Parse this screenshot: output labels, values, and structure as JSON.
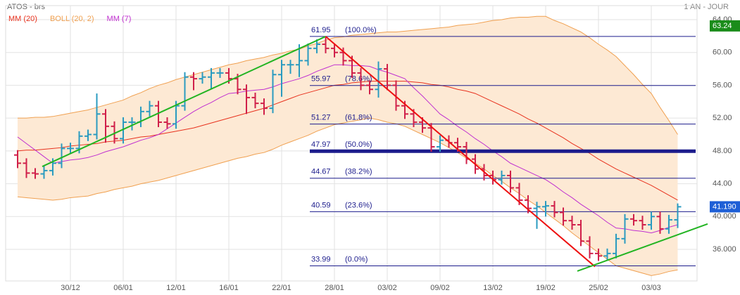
{
  "header": {
    "symbol": "ATOS - brs",
    "period": "1 AN - JOUR"
  },
  "chart_data": {
    "type": "ohlc",
    "categories": [
      null,
      null,
      null,
      null,
      null,
      null,
      "30/12",
      null,
      null,
      null,
      null,
      null,
      "06/01",
      null,
      null,
      null,
      null,
      null,
      "12/01",
      null,
      null,
      null,
      null,
      null,
      "16/01",
      null,
      null,
      null,
      null,
      null,
      "22/01",
      null,
      null,
      null,
      null,
      null,
      "28/01",
      null,
      null,
      null,
      null,
      null,
      "03/02",
      null,
      null,
      null,
      null,
      null,
      "09/02",
      null,
      null,
      null,
      null,
      null,
      "13/02",
      null,
      null,
      null,
      null,
      null,
      "19/02",
      null,
      null,
      null,
      null,
      null,
      "25/02",
      null,
      null,
      null,
      null,
      null,
      "03/03",
      null,
      null,
      null
    ],
    "open": [
      47.5,
      46.5,
      45.3,
      45.2,
      45.6,
      46.5,
      48.3,
      48.3,
      49.8,
      50.0,
      52.5,
      51.0,
      49.5,
      51.5,
      51.5,
      52.8,
      53.5,
      51.5,
      51.3,
      53.5,
      57.0,
      56.8,
      57.0,
      57.5,
      57.5,
      56.8,
      55.5,
      54.5,
      53.8,
      53.2,
      57.3,
      58.5,
      58.5,
      59.0,
      60.5,
      61.0,
      60.5,
      60.0,
      59.0,
      57.5,
      56.0,
      55.5,
      58.0,
      56.0,
      53.5,
      52.5,
      51.5,
      50.8,
      48.5,
      49.3,
      49.0,
      48.5,
      47.0,
      45.8,
      45.0,
      44.5,
      45.0,
      43.5,
      42.0,
      41.0,
      41.2,
      41.3,
      40.5,
      39.5,
      39.0,
      37.0,
      35.5,
      35.2,
      35.5,
      37.3,
      39.7,
      39.5,
      39.0,
      40.0,
      38.5,
      39.6
    ],
    "high": [
      48.1,
      47.1,
      45.9,
      46.2,
      47.1,
      48.9,
      49.0,
      50.4,
      50.6,
      55.0,
      53.1,
      51.6,
      52.1,
      52.1,
      53.4,
      54.1,
      54.1,
      52.1,
      54.1,
      57.6,
      57.6,
      57.6,
      58.1,
      58.1,
      58.1,
      57.4,
      56.1,
      55.1,
      54.4,
      57.9,
      59.1,
      59.1,
      61.0,
      61.1,
      61.6,
      61.95,
      61.1,
      60.6,
      59.6,
      58.1,
      56.6,
      58.9,
      58.6,
      56.6,
      54.1,
      53.1,
      52.1,
      51.4,
      49.9,
      49.9,
      49.6,
      49.1,
      47.6,
      46.4,
      45.6,
      45.6,
      45.6,
      44.1,
      42.6,
      41.8,
      41.9,
      41.9,
      41.1,
      40.1,
      39.6,
      37.6,
      36.1,
      36.1,
      37.9,
      40.3,
      40.3,
      40.1,
      40.6,
      40.6,
      40.2,
      41.6
    ],
    "low": [
      45.9,
      44.7,
      44.6,
      44.6,
      45.0,
      45.9,
      47.7,
      47.7,
      49.2,
      49.4,
      49.0,
      48.9,
      48.9,
      50.5,
      50.9,
      52.2,
      50.9,
      50.7,
      50.7,
      52.9,
      55.4,
      56.2,
      55.5,
      56.9,
      56.2,
      54.9,
      52.5,
      53.2,
      52.4,
      52.6,
      54.6,
      57.4,
      57.0,
      58.4,
      59.9,
      59.9,
      59.4,
      58.4,
      56.9,
      55.4,
      54.9,
      54.5,
      55.4,
      52.9,
      51.9,
      50.9,
      50.2,
      47.9,
      47.9,
      48.4,
      47.9,
      46.4,
      45.2,
      44.4,
      43.9,
      43.9,
      42.9,
      41.4,
      40.4,
      38.5,
      40.0,
      39.9,
      38.9,
      38.4,
      36.4,
      34.9,
      34.6,
      34.6,
      34.9,
      36.7,
      38.9,
      38.4,
      38.4,
      37.9,
      37.9,
      38.6
    ],
    "close": [
      46.5,
      45.3,
      45.2,
      45.6,
      46.5,
      48.3,
      48.3,
      49.8,
      50.0,
      52.5,
      51.0,
      49.5,
      51.5,
      51.5,
      52.8,
      53.5,
      51.5,
      51.3,
      53.5,
      57.0,
      56.8,
      57.0,
      57.5,
      57.5,
      56.8,
      55.5,
      54.5,
      53.8,
      53.2,
      57.3,
      58.5,
      58.5,
      59.0,
      60.5,
      61.0,
      60.5,
      60.0,
      59.0,
      57.5,
      56.0,
      55.5,
      58.0,
      56.0,
      53.5,
      52.5,
      51.5,
      50.8,
      48.5,
      49.3,
      49.0,
      48.5,
      47.0,
      45.8,
      45.0,
      44.5,
      45.0,
      43.5,
      42.0,
      41.0,
      41.2,
      41.3,
      40.5,
      39.5,
      39.0,
      37.0,
      35.5,
      35.2,
      35.5,
      37.3,
      39.7,
      39.5,
      39.0,
      40.0,
      38.5,
      39.6,
      41.19
    ],
    "up_color": "#2a9bc0",
    "down_color": "#d0204a",
    "series": [
      {
        "name": "MM (20)",
        "color": "#e8321e",
        "values": [
          48.0,
          48.1,
          48.1,
          48.2,
          48.3,
          48.4,
          48.6,
          48.7,
          48.8,
          48.9,
          49.1,
          49.2,
          49.3,
          49.5,
          49.7,
          49.8,
          50.0,
          50.2,
          50.4,
          50.6,
          50.8,
          51.1,
          51.4,
          51.7,
          52.0,
          52.3,
          52.6,
          52.9,
          53.2,
          53.6,
          54.0,
          54.4,
          54.8,
          55.1,
          55.4,
          55.7,
          56.0,
          56.1,
          56.3,
          56.4,
          56.5,
          56.5,
          56.5,
          56.5,
          56.5,
          56.4,
          56.3,
          56.1,
          56.0,
          55.8,
          55.5,
          55.3,
          55.0,
          54.5,
          54.0,
          53.5,
          53.0,
          52.5,
          51.9,
          51.4,
          50.8,
          50.2,
          49.6,
          48.9,
          48.3,
          47.7,
          47.0,
          46.4,
          45.8,
          45.3,
          44.8,
          44.3,
          43.8,
          43.2,
          42.6,
          42.0
        ]
      },
      {
        "name": "MM (7)",
        "color": "#c030d0",
        "values": [
          49.7,
          48.9,
          48.1,
          47.3,
          46.5,
          46.7,
          46.9,
          47.0,
          47.2,
          47.5,
          47.9,
          48.2,
          48.5,
          48.9,
          49.3,
          49.6,
          50.0,
          50.7,
          51.4,
          52.1,
          52.8,
          53.4,
          53.9,
          54.5,
          55.0,
          55.1,
          55.3,
          55.4,
          55.5,
          55.8,
          56.2,
          56.5,
          56.8,
          57.2,
          57.7,
          58.1,
          58.5,
          58.5,
          58.4,
          58.4,
          58.3,
          57.9,
          57.6,
          57.2,
          56.8,
          55.7,
          54.7,
          53.6,
          52.5,
          51.8,
          51.0,
          50.3,
          49.5,
          48.8,
          48.0,
          47.3,
          46.5,
          46.0,
          45.5,
          45.0,
          44.5,
          43.8,
          43.0,
          42.3,
          41.5,
          40.8,
          40.1,
          39.3,
          38.6,
          38.5,
          38.3,
          38.2,
          38.0,
          38.3,
          38.7,
          39.0
        ]
      }
    ],
    "bands": {
      "name": "BOLL (20, 2)",
      "color": "#f0a050",
      "fill": "#fde9d4",
      "upper": [
        52.0,
        52.0,
        52.1,
        52.1,
        52.2,
        52.4,
        52.6,
        52.8,
        53.0,
        53.3,
        53.6,
        53.9,
        54.2,
        54.7,
        55.1,
        55.6,
        56.0,
        56.3,
        56.7,
        57.0,
        57.3,
        57.6,
        57.9,
        58.2,
        58.5,
        58.7,
        59.0,
        59.2,
        59.4,
        59.7,
        59.9,
        60.2,
        60.4,
        60.8,
        61.1,
        61.5,
        61.8,
        61.9,
        62.1,
        62.2,
        62.3,
        62.4,
        62.5,
        62.5,
        62.6,
        62.7,
        62.8,
        62.9,
        63.0,
        63.1,
        63.3,
        63.4,
        63.5,
        63.7,
        63.9,
        64.0,
        64.2,
        64.3,
        64.3,
        64.4,
        64.4,
        63.9,
        63.5,
        63.0,
        62.5,
        61.8,
        61.0,
        60.3,
        59.5,
        58.4,
        57.3,
        56.1,
        55.0,
        53.3,
        51.7,
        50.0
      ],
      "lower": [
        42.4,
        42.3,
        42.2,
        42.1,
        42.0,
        42.1,
        42.3,
        42.4,
        42.5,
        42.8,
        43.0,
        43.3,
        43.5,
        43.7,
        44.0,
        44.2,
        44.4,
        44.7,
        45.0,
        45.3,
        45.6,
        45.9,
        46.2,
        46.5,
        46.8,
        47.1,
        47.3,
        47.6,
        47.8,
        48.2,
        48.7,
        49.1,
        49.5,
        49.9,
        50.4,
        50.8,
        51.2,
        51.4,
        51.6,
        51.8,
        52.0,
        51.8,
        51.5,
        51.3,
        51.0,
        50.5,
        50.0,
        49.5,
        49.0,
        48.4,
        47.8,
        47.1,
        46.5,
        45.8,
        45.0,
        44.3,
        43.5,
        42.8,
        42.0,
        41.3,
        40.5,
        39.7,
        38.9,
        38.0,
        37.2,
        36.4,
        35.6,
        34.8,
        34.0,
        33.7,
        33.4,
        33.1,
        32.8,
        33.0,
        33.3,
        33.5
      ]
    },
    "ylim": [
      32.15,
      65.71
    ],
    "yticks": [
      {
        "value": 64,
        "label": "64.00"
      },
      {
        "value": 60,
        "label": "60.00"
      },
      {
        "value": 56,
        "label": "56.00"
      },
      {
        "value": 52,
        "label": "52.00"
      },
      {
        "value": 48,
        "label": "48.00"
      },
      {
        "value": 44,
        "label": "44.00"
      },
      {
        "value": 40,
        "label": "40.000"
      },
      {
        "value": 36,
        "label": "36.000"
      }
    ],
    "grid": true,
    "fibonacci": {
      "color": "#1c1c8c",
      "levels": [
        {
          "price": 61.95,
          "ratio": {
            "value": 100,
            "label": "(100.0%)"
          }
        },
        {
          "price": 55.97,
          "ratio": {
            "value": 78.6,
            "label": "(78.6%)"
          }
        },
        {
          "price": 51.27,
          "ratio": {
            "value": 61.8,
            "label": "(61.8%)"
          }
        },
        {
          "price": 47.97,
          "ratio": {
            "value": 50,
            "label": "(50.0%)"
          },
          "bold": true
        },
        {
          "price": 44.67,
          "ratio": {
            "value": 38.2,
            "label": "(38.2%)"
          }
        },
        {
          "price": 40.59,
          "ratio": {
            "value": 23.6,
            "label": "(23.6%)"
          }
        },
        {
          "price": 33.99,
          "ratio": {
            "value": 0,
            "label": "(0.0%)"
          }
        }
      ]
    },
    "trend_lines": [
      {
        "color": "#22b422",
        "x": [
          2.8,
          35
        ],
        "y": [
          46.1,
          61.95
        ]
      },
      {
        "color": "#ee1111",
        "x": [
          35,
          65.6
        ],
        "y": [
          61.95,
          33.9
        ]
      },
      {
        "color": "#22b422",
        "x": [
          63.6,
          78.4
        ],
        "y": [
          33.35,
          39.1
        ]
      }
    ],
    "price_tags": [
      {
        "value": 63.24,
        "color": "#1a8c1a"
      },
      {
        "value": 41.19,
        "label": "41.190",
        "color": "#1e5fd6"
      }
    ]
  }
}
